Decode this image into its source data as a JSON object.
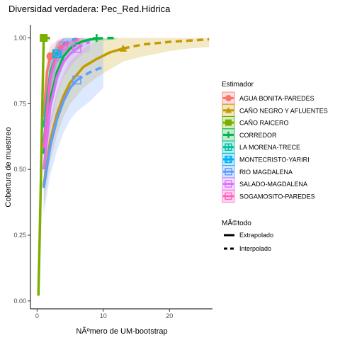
{
  "chart_data": {
    "type": "line",
    "title": "Diversidad verdadera: Pec_Red.Hidrica",
    "xlabel": "NÃºmero de UM-bootstrap",
    "ylabel": "Cobertura de muestreo",
    "xlim": [
      -1,
      26.5
    ],
    "ylim": [
      -0.03,
      1.05
    ],
    "x_ticks": [
      0,
      10,
      20
    ],
    "y_ticks": [
      0.0,
      0.25,
      0.5,
      0.75,
      1.0
    ],
    "y_tick_labels": [
      "0.00",
      "0.25",
      "0.50",
      "0.75",
      "1.00"
    ],
    "grid": false,
    "legend": {
      "placement": "right",
      "title": "Estimador",
      "method_title": "MÃ©todo",
      "method_entries": [
        {
          "label": "Extrapolado",
          "linetype": "solid"
        },
        {
          "label": "Interpolado",
          "linetype": "dashed"
        }
      ]
    },
    "series": [
      {
        "name": "AGUA BONITA-PAREDES",
        "color": "#F8766D",
        "shape": "circle",
        "ref": [
          2,
          0.93
        ],
        "x": [
          1,
          1.5,
          2,
          3,
          4
        ],
        "y": [
          0.7,
          0.87,
          0.93,
          0.96,
          0.975
        ],
        "lo": [
          0.6,
          0.8,
          0.88,
          0.91,
          0.93
        ],
        "hi": [
          0.8,
          0.93,
          0.97,
          0.99,
          1.0
        ]
      },
      {
        "name": "CAÑO NEGRO Y AFLUENTES",
        "color": "#C49A00",
        "shape": "triangle",
        "ref": [
          13,
          0.96
        ],
        "x": [
          1,
          2,
          3,
          4,
          5,
          7,
          9,
          11,
          13,
          16,
          20,
          23,
          26
        ],
        "y": [
          0.44,
          0.61,
          0.71,
          0.78,
          0.83,
          0.89,
          0.92,
          0.945,
          0.96,
          0.975,
          0.985,
          0.99,
          0.995
        ],
        "lo": [
          0.36,
          0.53,
          0.63,
          0.7,
          0.75,
          0.81,
          0.85,
          0.88,
          0.91,
          0.93,
          0.95,
          0.96,
          0.965
        ],
        "hi": [
          0.52,
          0.69,
          0.79,
          0.86,
          0.91,
          0.96,
          0.99,
          1.0,
          1.0,
          1.0,
          1.0,
          1.0,
          1.0
        ]
      },
      {
        "name": "CAÑO RAICERO",
        "color": "#53B400",
        "shape": "square",
        "ref_color": "#7CAE00",
        "line_color": "#7CAE00",
        "ref": [
          1,
          1.0
        ],
        "x": [
          0.2,
          0.4,
          0.6,
          0.8,
          1.0,
          1.5,
          2.0
        ],
        "y": [
          0.02,
          0.25,
          0.5,
          0.75,
          1.0,
          1.0,
          1.0
        ],
        "lo": [
          0.0,
          0.2,
          0.45,
          0.7,
          0.98,
          0.99,
          0.99
        ],
        "hi": [
          0.05,
          0.3,
          0.55,
          0.8,
          1.0,
          1.0,
          1.0
        ]
      },
      {
        "name": "CORREDOR",
        "color": "#00B548",
        "shape": "plus",
        "ref": [
          9,
          1.0
        ],
        "x": [
          1,
          2,
          3,
          4,
          5,
          6,
          7,
          8,
          9,
          10,
          12
        ],
        "y": [
          0.56,
          0.77,
          0.87,
          0.93,
          0.96,
          0.978,
          0.988,
          0.994,
          0.997,
          0.999,
          1.0
        ],
        "lo": [
          0.5,
          0.71,
          0.82,
          0.89,
          0.93,
          0.95,
          0.97,
          0.98,
          0.985,
          0.99,
          0.995
        ],
        "hi": [
          0.62,
          0.83,
          0.92,
          0.97,
          0.99,
          1.0,
          1.0,
          1.0,
          1.0,
          1.0,
          1.0
        ]
      },
      {
        "name": "LA MORENA-TRECE",
        "color": "#00C1A3",
        "shape": "square-cross",
        "ref": [
          3,
          0.94
        ],
        "x": [
          1,
          2,
          3,
          4,
          5,
          6
        ],
        "y": [
          0.66,
          0.87,
          0.94,
          0.975,
          0.99,
          0.997
        ],
        "lo": [
          0.58,
          0.81,
          0.9,
          0.94,
          0.96,
          0.97
        ],
        "hi": [
          0.74,
          0.93,
          0.98,
          1.0,
          1.0,
          1.0
        ]
      },
      {
        "name": "MONTECRISTO-YARIRI",
        "color": "#00B0F6",
        "shape": "square-x",
        "ref": [
          3,
          0.94
        ],
        "x": [
          1,
          2,
          3,
          4,
          5,
          6
        ],
        "y": [
          0.6,
          0.85,
          0.94,
          0.975,
          0.99,
          0.997
        ],
        "lo": [
          0.52,
          0.79,
          0.9,
          0.94,
          0.96,
          0.97
        ],
        "hi": [
          0.68,
          0.91,
          0.98,
          1.0,
          1.0,
          1.0
        ]
      },
      {
        "name": "RIO MAGDALENA",
        "color": "#619CFF",
        "shape": "square-plain",
        "ref": [
          6,
          0.84
        ],
        "x": [
          1,
          2,
          3,
          4,
          5,
          6,
          7,
          8,
          10
        ],
        "y": [
          0.43,
          0.59,
          0.69,
          0.76,
          0.81,
          0.84,
          0.855,
          0.87,
          0.89
        ],
        "lo": [
          0.33,
          0.48,
          0.57,
          0.64,
          0.69,
          0.72,
          0.74,
          0.76,
          0.81
        ],
        "hi": [
          0.53,
          0.7,
          0.81,
          0.88,
          0.93,
          0.96,
          0.97,
          0.98,
          0.99
        ]
      },
      {
        "name": "SALADO-MAGDALENA",
        "color": "#DB72FB",
        "shape": "square-plain",
        "ref": [
          6,
          0.96
        ],
        "x": [
          1,
          2,
          3,
          4,
          5,
          6,
          7,
          8
        ],
        "y": [
          0.5,
          0.74,
          0.85,
          0.91,
          0.94,
          0.96,
          0.975,
          0.985
        ],
        "lo": [
          0.42,
          0.66,
          0.78,
          0.85,
          0.89,
          0.92,
          0.94,
          0.95
        ],
        "hi": [
          0.58,
          0.82,
          0.92,
          0.97,
          0.99,
          1.0,
          1.0,
          1.0
        ]
      },
      {
        "name": "SOGAMOSITO-PAREDES",
        "color": "#FF61C3",
        "shape": "square-plain",
        "ref": [
          4,
          0.97
        ],
        "x": [
          1,
          2,
          3,
          4,
          5,
          6,
          7
        ],
        "y": [
          0.58,
          0.85,
          0.94,
          0.97,
          0.985,
          0.993,
          0.997
        ],
        "lo": [
          0.5,
          0.78,
          0.89,
          0.93,
          0.95,
          0.96,
          0.97
        ],
        "hi": [
          0.66,
          0.92,
          0.99,
          1.0,
          1.0,
          1.0,
          1.0
        ]
      }
    ]
  }
}
